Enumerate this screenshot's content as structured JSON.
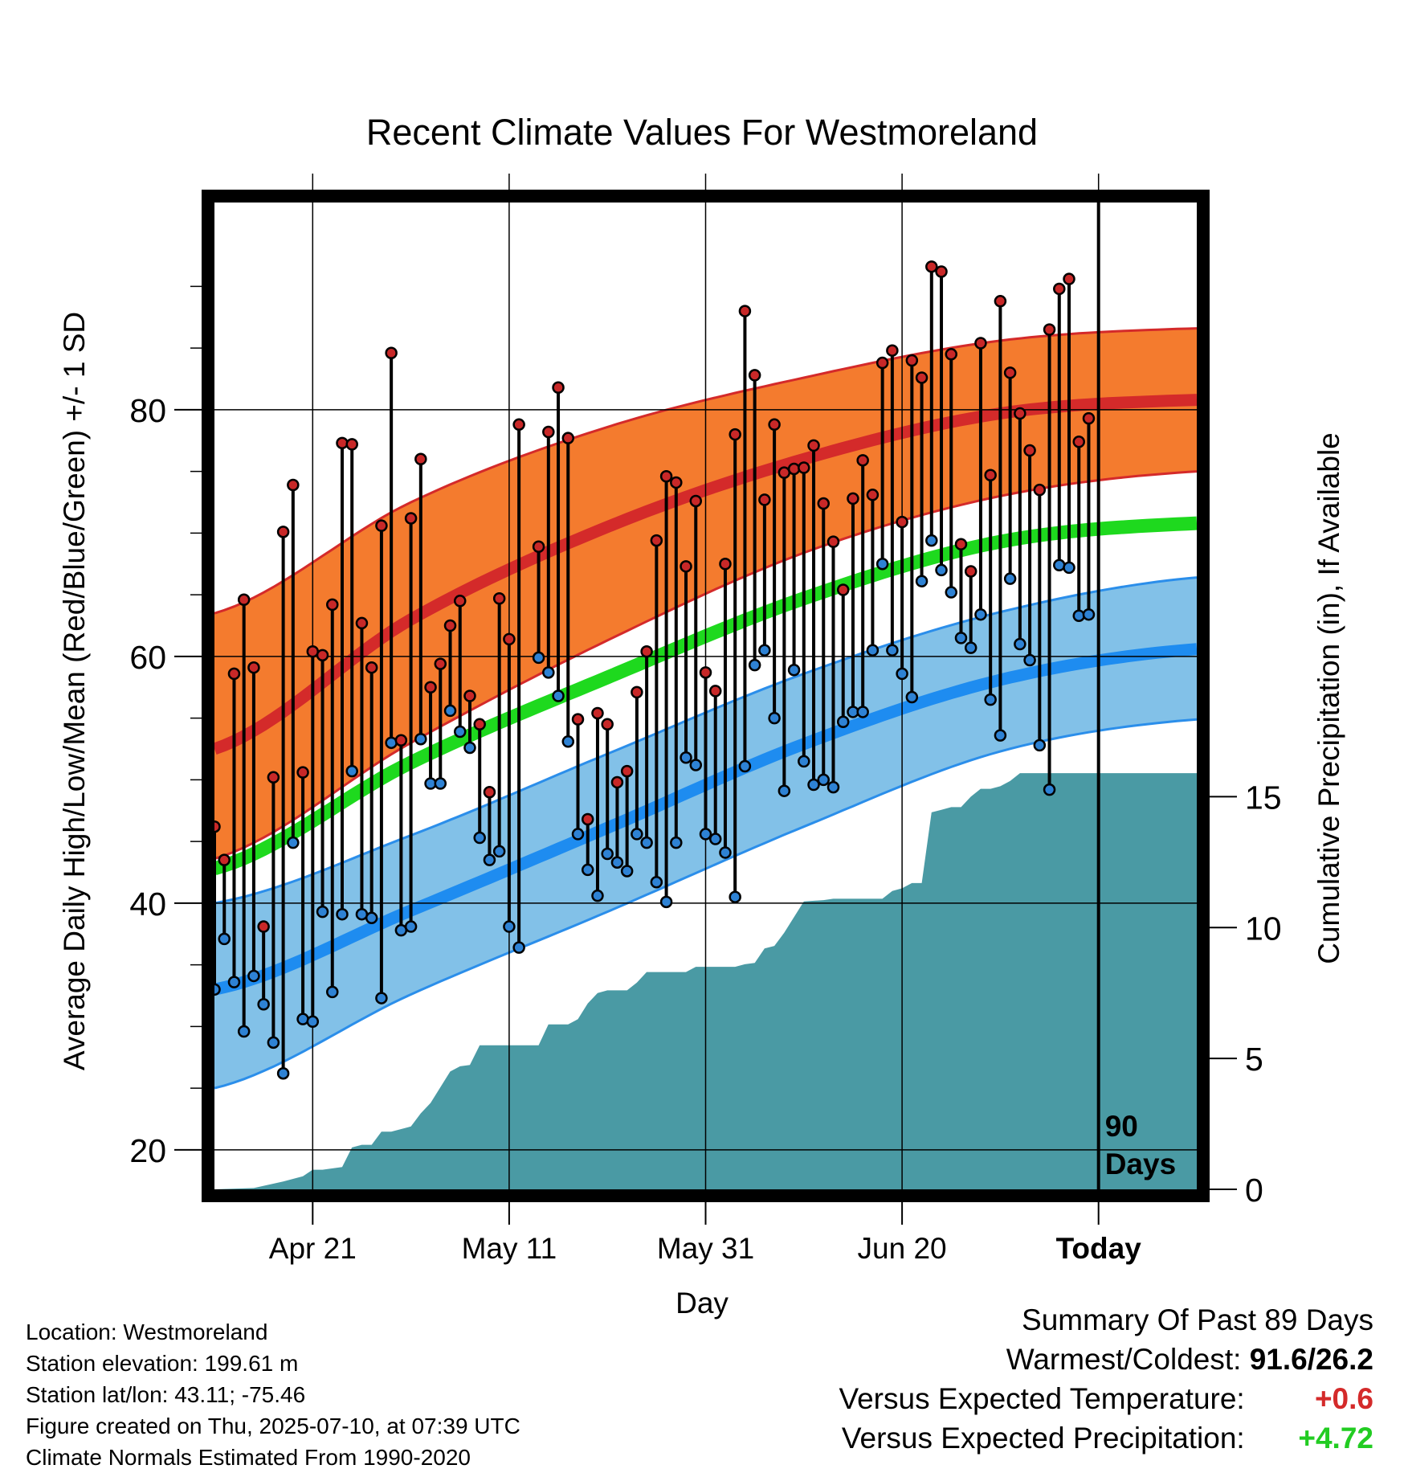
{
  "chart_data": {
    "type": "line",
    "title": "Recent Climate Values For Westmoreland",
    "xlabel": "Day",
    "ylabel": "Average Daily High/Low/Mean (Red/Blue/Green) +/- 1 SD",
    "y2label": "Cumulative Precipitation (in), If Available",
    "x_tick_labels": [
      "Apr 21",
      "May 11",
      "May 31",
      "Jun 20",
      "Today"
    ],
    "x_tick_days": [
      10,
      30,
      50,
      70,
      90
    ],
    "x_range": [
      0,
      100
    ],
    "y_ticks": [
      20,
      40,
      60,
      80
    ],
    "y_range": [
      16.8,
      96.8
    ],
    "y2_ticks": [
      0,
      5,
      10,
      15
    ],
    "y2_range": [
      0,
      37.7
    ],
    "today_label": "90\nDays",
    "colors": {
      "high_band": "#F47B2E",
      "high_band_edge": "#D42A2A",
      "high_mean": "#D42A2A",
      "low_band": "#82C1E8",
      "low_band_edge": "#2B8EEA",
      "low_mean": "#1E8CF0",
      "mean": "#1ED91E",
      "precip": "#4A9AA4",
      "high_marker": "#C82828",
      "low_marker": "#2E82D4"
    },
    "normals": {
      "days": [
        0,
        20,
        40,
        60,
        80,
        100
      ],
      "high_mean": [
        52.5,
        63.0,
        70.5,
        76.0,
        79.7,
        80.8
      ],
      "high_upper": [
        63.5,
        72.5,
        78.6,
        82.6,
        85.6,
        86.6
      ],
      "high_lower": [
        43.6,
        53.0,
        61.3,
        68.4,
        73.0,
        75.0
      ],
      "low_mean": [
        33.0,
        39.4,
        46.1,
        52.9,
        58.1,
        60.6
      ],
      "low_upper": [
        40.0,
        45.5,
        52.1,
        58.6,
        63.6,
        66.4
      ],
      "low_lower": [
        25.0,
        32.6,
        39.3,
        46.2,
        52.3,
        54.9
      ],
      "mean": [
        42.8,
        51.4,
        58.3,
        64.7,
        69.3,
        70.8
      ]
    },
    "series": [
      {
        "name": "High",
        "values": [
          46.2,
          43.5,
          58.6,
          64.6,
          59.1,
          38.1,
          50.2,
          70.1,
          73.9,
          50.6,
          60.4,
          60.1,
          64.2,
          77.3,
          77.2,
          62.7,
          59.1,
          70.6,
          84.6,
          53.2,
          71.2,
          76.0,
          57.5,
          59.4,
          62.5,
          64.5,
          56.8,
          54.5,
          49.0,
          64.7,
          61.4,
          78.8,
          null,
          68.9,
          78.2,
          81.8,
          77.7,
          54.9,
          46.8,
          55.4,
          54.5,
          49.8,
          50.7,
          57.1,
          60.4,
          69.4,
          74.6,
          74.1,
          67.3,
          72.6,
          58.7,
          57.2,
          67.5,
          78.0,
          88.0,
          82.8,
          72.7,
          78.8,
          74.9,
          75.2,
          75.3,
          77.1,
          72.4,
          69.3,
          65.4,
          72.8,
          75.9,
          73.1,
          83.8,
          84.8,
          70.9,
          84.0,
          82.6,
          91.6,
          91.2,
          84.5,
          69.1,
          66.9,
          85.4,
          74.7,
          88.8,
          83.0,
          79.7,
          76.7,
          73.5,
          86.5,
          89.8,
          90.6,
          77.4,
          79.3
        ]
      },
      {
        "name": "Low",
        "values": [
          33.0,
          37.1,
          33.6,
          29.6,
          34.1,
          31.8,
          28.7,
          26.2,
          44.9,
          30.6,
          30.4,
          39.3,
          32.8,
          39.1,
          50.7,
          39.1,
          38.8,
          32.3,
          53.0,
          37.8,
          38.1,
          53.3,
          49.7,
          49.7,
          55.6,
          53.9,
          52.6,
          45.3,
          43.5,
          44.2,
          38.1,
          36.4,
          null,
          59.9,
          58.7,
          56.8,
          53.1,
          45.6,
          42.7,
          40.6,
          44.0,
          43.3,
          42.6,
          45.6,
          44.9,
          41.7,
          40.1,
          44.9,
          51.8,
          51.2,
          45.6,
          45.2,
          44.1,
          40.5,
          51.1,
          59.3,
          60.5,
          55.0,
          49.1,
          58.9,
          51.5,
          49.6,
          50.0,
          49.4,
          54.7,
          55.5,
          55.5,
          60.5,
          67.5,
          60.5,
          58.6,
          56.7,
          66.1,
          69.4,
          67.0,
          65.2,
          61.5,
          60.7,
          63.4,
          56.5,
          53.6,
          66.3,
          61.0,
          59.7,
          52.8,
          49.2,
          67.4,
          67.2,
          63.3,
          63.4
        ]
      }
    ],
    "cumulative_precip": {
      "days": [
        0,
        4,
        7,
        9,
        10,
        11,
        13,
        14,
        15,
        16,
        17,
        18,
        20,
        21,
        22,
        24,
        25,
        26,
        27,
        28,
        29,
        30,
        31,
        33,
        34,
        35,
        36,
        37,
        38,
        39,
        40,
        41,
        42,
        43,
        44,
        46,
        48,
        49,
        50,
        53,
        54,
        55,
        56,
        57,
        58,
        60,
        62,
        63,
        64,
        65,
        66,
        67,
        68,
        69,
        70,
        71,
        72,
        73,
        74,
        75,
        76,
        77,
        78,
        79,
        80,
        81,
        82,
        83,
        90,
        100
      ],
      "values": [
        0.0,
        0.05,
        0.3,
        0.5,
        0.75,
        0.75,
        0.85,
        1.6,
        1.7,
        1.7,
        2.2,
        2.2,
        2.4,
        2.9,
        3.3,
        4.5,
        4.7,
        4.75,
        5.5,
        5.5,
        5.5,
        5.5,
        5.5,
        5.5,
        6.3,
        6.3,
        6.3,
        6.5,
        7.1,
        7.5,
        7.6,
        7.6,
        7.6,
        7.9,
        8.3,
        8.3,
        8.3,
        8.5,
        8.5,
        8.5,
        8.6,
        8.65,
        9.2,
        9.3,
        9.8,
        11.0,
        11.05,
        11.1,
        11.1,
        11.1,
        11.1,
        11.1,
        11.1,
        11.4,
        11.5,
        11.7,
        11.7,
        14.4,
        14.5,
        14.6,
        14.6,
        15.0,
        15.3,
        15.3,
        15.4,
        15.6,
        15.9,
        15.9,
        15.9,
        15.9
      ]
    },
    "grid": true,
    "legend": "none"
  },
  "metadata_text": {
    "location": "Location: Westmoreland",
    "elevation": "Station elevation: 199.61 m",
    "latlon": "Station lat/lon: 43.11; -75.46",
    "created": "Figure created on Thu, 2025-07-10, at 07:39 UTC",
    "normals": "Climate Normals Estimated From 1990-2020"
  },
  "summary": {
    "title": "Summary Of Past 89 Days",
    "warmest_coldest_label": "Warmest/Coldest:",
    "warmest_coldest_value": "91.6/26.2",
    "temp_label": "Versus Expected Temperature:",
    "temp_value": "+0.6",
    "temp_color": "#D42A2A",
    "precip_label": "Versus Expected Precipitation:",
    "precip_value": "+4.72",
    "precip_color": "#22CC22"
  }
}
